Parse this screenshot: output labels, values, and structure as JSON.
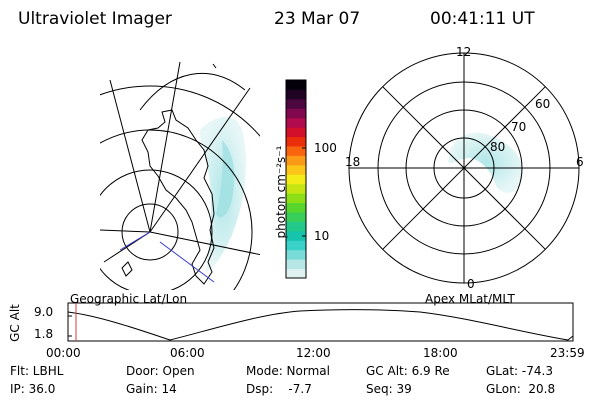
{
  "header": {
    "title": "Ultraviolet Imager",
    "date": "23 Mar 07",
    "time": "00:41:11 UT"
  },
  "colorbar": {
    "unit_label": "photon cm⁻²s⁻¹",
    "ticks": [
      "100",
      "10"
    ],
    "colors": [
      "#dff1f1",
      "#b6e6e6",
      "#7adcd8",
      "#39d1c9",
      "#16c4ac",
      "#22c98a",
      "#37cf5a",
      "#58d62e",
      "#8ede17",
      "#c6e613",
      "#f4ec17",
      "#fbc51a",
      "#fb9a17",
      "#f8650f",
      "#ec2d0a",
      "#d3102c",
      "#b00c4d",
      "#82084e",
      "#4d0740",
      "#1e0322",
      "#05010a"
    ]
  },
  "map_left": {
    "label": "Geographic Lat/Lon"
  },
  "map_right": {
    "label": "Apex MLat/MLT",
    "mlt_labels": [
      "12",
      "18",
      "6",
      "0"
    ],
    "lat_labels": [
      "60",
      "70",
      "80"
    ]
  },
  "altitude_plot": {
    "ylabel": "GC Alt",
    "yticks": [
      "9.0",
      "1.8"
    ],
    "xticks": [
      "00:00",
      "06:00",
      "12:00",
      "18:00",
      "23:59"
    ]
  },
  "status": {
    "row1": [
      "Flt: LBHL",
      "Door: Open",
      "Mode: Normal",
      "GC Alt: 6.9 Re",
      "GLat: -74.3"
    ],
    "row2": [
      "IP: 36.0",
      "Gain: 14",
      "Dsp:    -7.7",
      "Seq: 39",
      "GLon:  20.8"
    ]
  },
  "colors": {
    "aurora": "#bfeaea",
    "marker": "#d63c3c",
    "track": "#3b3bcc"
  }
}
